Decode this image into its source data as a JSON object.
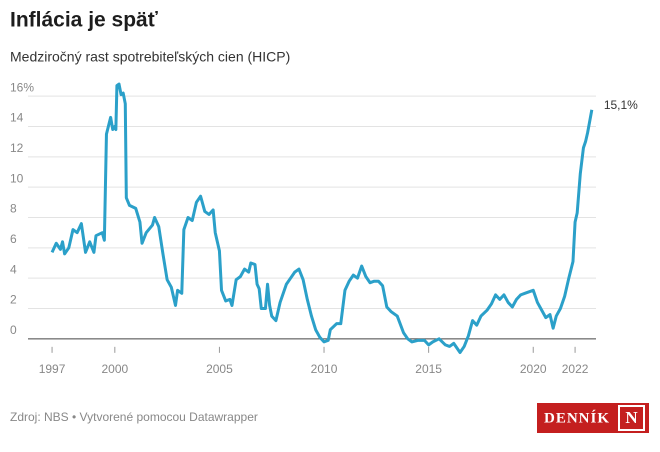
{
  "chart_data": {
    "type": "line",
    "title": "Inflácia je späť",
    "subtitle": "Medziročný rast spotrebiteľských cien (HICP)",
    "x": [
      1997.0,
      1997.2,
      1997.4,
      1997.5,
      1997.6,
      1997.8,
      1998.0,
      1998.2,
      1998.4,
      1998.6,
      1998.8,
      1999.0,
      1999.1,
      1999.4,
      1999.5,
      1999.6,
      1999.8,
      1999.9,
      2000.0,
      2000.05,
      2000.1,
      2000.2,
      2000.3,
      2000.4,
      2000.5,
      2000.55,
      2000.7,
      2001.0,
      2001.2,
      2001.3,
      2001.5,
      2001.8,
      2001.9,
      2002.1,
      2002.3,
      2002.5,
      2002.7,
      2002.9,
      2003.0,
      2003.2,
      2003.3,
      2003.5,
      2003.7,
      2003.9,
      2004.1,
      2004.3,
      2004.5,
      2004.7,
      2004.8,
      2005.0,
      2005.1,
      2005.3,
      2005.5,
      2005.6,
      2005.8,
      2006.0,
      2006.2,
      2006.4,
      2006.5,
      2006.7,
      2006.8,
      2006.9,
      2007.0,
      2007.2,
      2007.3,
      2007.4,
      2007.5,
      2007.7,
      2007.9,
      2008.2,
      2008.4,
      2008.6,
      2008.8,
      2009.0,
      2009.2,
      2009.4,
      2009.6,
      2009.8,
      2010.0,
      2010.2,
      2010.3,
      2010.6,
      2010.8,
      2011.0,
      2011.2,
      2011.4,
      2011.6,
      2011.8,
      2012.0,
      2012.2,
      2012.4,
      2012.6,
      2012.8,
      2013.0,
      2013.2,
      2013.5,
      2013.8,
      2014.0,
      2014.2,
      2014.5,
      2014.8,
      2015.0,
      2015.2,
      2015.5,
      2015.8,
      2016.0,
      2016.2,
      2016.5,
      2016.7,
      2016.9,
      2017.1,
      2017.3,
      2017.5,
      2017.8,
      2018.0,
      2018.2,
      2018.4,
      2018.6,
      2018.8,
      2019.0,
      2019.2,
      2019.4,
      2019.6,
      2019.8,
      2020.0,
      2020.2,
      2020.4,
      2020.6,
      2020.8,
      2020.95,
      2021.1,
      2021.3,
      2021.5,
      2021.7,
      2021.9,
      2022.0,
      2022.1,
      2022.25,
      2022.4,
      2022.5,
      2022.6,
      2022.8
    ],
    "series": [
      {
        "name": "HICP",
        "color": "#2ba0c9",
        "values": [
          5.7,
          6.3,
          5.9,
          6.4,
          5.6,
          6.0,
          7.2,
          7.0,
          7.6,
          5.7,
          6.4,
          5.7,
          6.8,
          7.0,
          6.5,
          13.5,
          14.6,
          13.8,
          14.0,
          13.8,
          16.7,
          16.8,
          16.1,
          16.2,
          15.5,
          9.3,
          8.8,
          8.6,
          7.7,
          6.3,
          7.0,
          7.5,
          8.0,
          7.4,
          5.6,
          3.9,
          3.4,
          2.2,
          3.2,
          3.0,
          7.2,
          8.0,
          7.8,
          9.0,
          9.4,
          8.4,
          8.2,
          8.5,
          7.0,
          5.8,
          3.2,
          2.5,
          2.6,
          2.2,
          3.9,
          4.1,
          4.6,
          4.4,
          5.0,
          4.9,
          3.6,
          3.3,
          2.0,
          2.0,
          3.6,
          2.2,
          1.5,
          1.2,
          2.4,
          3.6,
          4.0,
          4.4,
          4.6,
          3.9,
          2.6,
          1.5,
          0.6,
          0.1,
          -0.2,
          -0.1,
          0.6,
          1.0,
          1.0,
          3.2,
          3.8,
          4.2,
          4.0,
          4.8,
          4.1,
          3.7,
          3.8,
          3.8,
          3.5,
          2.1,
          1.8,
          1.5,
          0.4,
          0.0,
          -0.2,
          -0.1,
          -0.1,
          -0.4,
          -0.2,
          0.0,
          -0.4,
          -0.5,
          -0.3,
          -0.9,
          -0.5,
          0.2,
          1.2,
          0.9,
          1.5,
          1.9,
          2.3,
          2.9,
          2.6,
          2.9,
          2.4,
          2.1,
          2.6,
          2.9,
          3.0,
          3.1,
          3.2,
          2.4,
          1.9,
          1.4,
          1.6,
          0.7,
          1.5,
          2.0,
          2.8,
          4.0,
          5.1,
          7.7,
          8.3,
          10.9,
          12.6,
          13.0,
          13.6,
          15.1
        ]
      }
    ],
    "end_label": "15,1%",
    "xlim": [
      1995.85,
      2023.0
    ],
    "xticks": [
      1997,
      2000,
      2005,
      2010,
      2015,
      2020,
      2022
    ],
    "ylim": [
      -1,
      17
    ],
    "yticks": [
      0,
      2,
      4,
      6,
      8,
      10,
      12,
      14,
      {
        "value": 16,
        "label": "16%"
      }
    ],
    "grid": true
  },
  "footer": {
    "source": "Zdroj: NBS • Vytvorené pomocou Datawrapper",
    "logo_text": "DENNÍK",
    "logo_mark": "N"
  }
}
